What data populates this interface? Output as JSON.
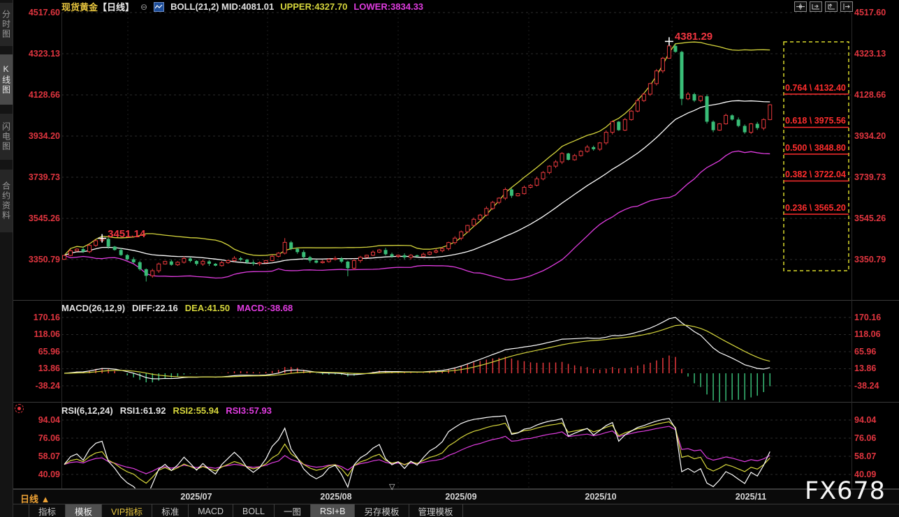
{
  "header": {
    "symbol": "现货黄金",
    "period_tag": "【日线】",
    "collapse_icon": "⊖",
    "boll_text": "BOLL(21,2) MID:4081.01",
    "upper_text": "UPPER:4327.70",
    "lower_text": "LOWER:3834.33"
  },
  "top_tools": [
    "crosshair-icon",
    "zoom-x-icon",
    "zoom-y-icon",
    "pan-right-icon"
  ],
  "sidebar": {
    "tabs": [
      {
        "label": "分时图",
        "selected": false
      },
      {
        "label": "K线图",
        "selected": true
      },
      {
        "label": "闪电图",
        "selected": false
      },
      {
        "label": "合约资料",
        "selected": false
      }
    ]
  },
  "timeframe": {
    "label": "日线",
    "arrow": "▲"
  },
  "axis_marker": "▽",
  "watermark": "FX678",
  "macd_header": {
    "name": "MACD(26,12,9)",
    "diff": "DIFF:22.16",
    "dea": "DEA:41.50",
    "macd": "MACD:-38.68"
  },
  "rsi_header": {
    "name": "RSI(6,12,24)",
    "r1": "RSI1:61.92",
    "r2": "RSI2:55.94",
    "r3": "RSI3:57.93"
  },
  "bottom_tabs": [
    {
      "label": "指标",
      "selected": false,
      "vip": false
    },
    {
      "label": "模板",
      "selected": true,
      "vip": false
    },
    {
      "label": "VIP指标",
      "selected": false,
      "vip": true
    },
    {
      "label": "标准",
      "selected": false,
      "vip": false
    },
    {
      "label": "MACD",
      "selected": false,
      "vip": false
    },
    {
      "label": "BOLL",
      "selected": false,
      "vip": false
    },
    {
      "label": "一图",
      "selected": false,
      "vip": false
    },
    {
      "label": "RSI+B",
      "selected": true,
      "vip": false
    },
    {
      "label": "另存模板",
      "selected": false,
      "vip": false
    },
    {
      "label": "管理模板",
      "selected": false,
      "vip": false
    }
  ],
  "fib": {
    "levels": [
      {
        "ratio": "0.764",
        "price": 4132.4,
        "label": "0.764 \\ 4132.40"
      },
      {
        "ratio": "0.618",
        "price": 3975.56,
        "label": "0.618 \\ 3975.56"
      },
      {
        "ratio": "0.500",
        "price": 3848.8,
        "label": "0.500 \\ 3848.80"
      },
      {
        "ratio": "0.382",
        "price": 3722.04,
        "label": "0.382 \\ 3722.04"
      },
      {
        "ratio": "0.236",
        "price": 3565.2,
        "label": "0.236 \\ 3565.20"
      }
    ]
  },
  "annotations": [
    {
      "text": "3451.14",
      "price": 3451.14,
      "candle_index": 6
    },
    {
      "text": "4381.29",
      "price": 4381.29,
      "candle_index": 96
    }
  ],
  "chart_data": {
    "type": "candlestick",
    "title": "现货黄金 日线 (Spot Gold Daily)",
    "x_labels": [
      "2025/07",
      "2025/08",
      "2025/09",
      "2025/10",
      "2025/11"
    ],
    "main": {
      "y_ticks": [
        "4517.60",
        "4323.13",
        "4128.66",
        "3934.20",
        "3739.73",
        "3545.26",
        "3350.79"
      ],
      "boll": {
        "period": 21,
        "mult": 2,
        "mid": 4081.01,
        "upper": 4327.7,
        "lower": 3834.33
      },
      "candles": {
        "note": "estimated daily closes read from chart; open = previous close",
        "open_first": 3352,
        "close": [
          3370,
          3392,
          3400,
          3388,
          3418,
          3440,
          3448,
          3412,
          3396,
          3372,
          3352,
          3338,
          3305,
          3274,
          3298,
          3330,
          3342,
          3326,
          3338,
          3356,
          3344,
          3330,
          3342,
          3331,
          3322,
          3336,
          3346,
          3357,
          3350,
          3338,
          3331,
          3336,
          3346,
          3366,
          3381,
          3432,
          3402,
          3386,
          3362,
          3346,
          3336,
          3341,
          3352,
          3356,
          3341,
          3310,
          3346,
          3362,
          3371,
          3386,
          3396,
          3376,
          3366,
          3371,
          3361,
          3371,
          3366,
          3376,
          3386,
          3392,
          3402,
          3431,
          3452,
          3482,
          3512,
          3541,
          3561,
          3592,
          3621,
          3641,
          3682,
          3652,
          3662,
          3692,
          3702,
          3732,
          3762,
          3792,
          3812,
          3852,
          3822,
          3842,
          3862,
          3882,
          3872,
          3902,
          3952,
          4002,
          3962,
          4012,
          4052,
          4102,
          4132,
          4182,
          4242,
          4302,
          4360,
          4332,
          4110,
          4132,
          4102,
          4122,
          4002,
          3962,
          3992,
          4032,
          4012,
          3982,
          3952,
          3992,
          3972,
          4012,
          4082
        ],
        "high_overrides": {
          "6": 3451.14,
          "35": 3452,
          "96": 4381.29
        },
        "low_overrides": {
          "13": 3247,
          "45": 3272,
          "98": 4080
        }
      }
    },
    "macd": {
      "params": [
        26,
        12,
        9
      ],
      "diff": 22.16,
      "dea": 41.5,
      "macd": -38.68,
      "y_ticks": [
        "170.16",
        "118.06",
        "65.96",
        "13.86",
        "-38.24"
      ]
    },
    "rsi": {
      "params": [
        6,
        12,
        24
      ],
      "rsi1": 61.92,
      "rsi2": 55.94,
      "rsi3": 57.93,
      "y_ticks": [
        "94.04",
        "76.06",
        "58.07",
        "40.09"
      ]
    },
    "colors": {
      "up": "#e8393d",
      "down": "#39bd77",
      "boll_mid": "#ffffff",
      "boll_upper": "#d6d63c",
      "boll_lower": "#e03ce0",
      "macd_diff": "#ffffff",
      "macd_dea": "#d6d63c",
      "hist_pos": "#e8393d",
      "hist_neg": "#39bd77",
      "rsi1": "#ffffff",
      "rsi2": "#d6d63c",
      "rsi3": "#e03ce0",
      "axis_text": "#e0353f",
      "fib": "#ff2d2d",
      "fib_box": "#d9d92a",
      "grid": "#2b2b2b"
    }
  }
}
